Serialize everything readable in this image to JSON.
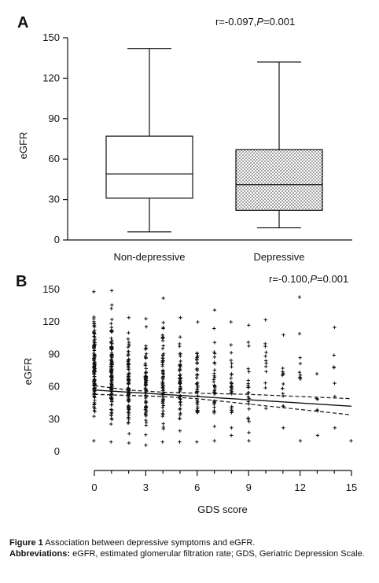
{
  "chart_data": [
    {
      "panel_label": "A",
      "type": "box",
      "annotation": {
        "prefix": "r=-0.097,",
        "p_symbol": "P",
        "p_value": "=0.001"
      },
      "ylabel": "eGFR",
      "ylim": [
        0,
        150
      ],
      "yticks": [
        "0",
        "30",
        "60",
        "90",
        "120",
        "150"
      ],
      "categories": [
        "Non-depressive",
        "Depressive"
      ],
      "boxes": [
        {
          "category": "Non-depressive",
          "min": 6,
          "q1": 31,
          "median": 49,
          "q3": 77,
          "max": 142,
          "fill": "plain"
        },
        {
          "category": "Depressive",
          "min": 9,
          "q1": 22,
          "median": 41,
          "q3": 67,
          "max": 132,
          "fill": "dotted"
        }
      ]
    },
    {
      "panel_label": "B",
      "type": "scatter",
      "annotation": {
        "prefix": "r=-0.100,",
        "p_symbol": "P",
        "p_value": "=0.001"
      },
      "xlabel": "GDS score",
      "ylabel": "eGFR",
      "xlim": [
        0,
        15
      ],
      "ylim": [
        0,
        150
      ],
      "xticks": [
        "0",
        "3",
        "6",
        "9",
        "12",
        "15"
      ],
      "yticks": [
        "0",
        "30",
        "60",
        "90",
        "120",
        "150"
      ],
      "marker": "+",
      "point_columns": [
        {
          "x": 0,
          "min": 10,
          "max": 148,
          "count": 130
        },
        {
          "x": 1,
          "min": 9,
          "max": 149,
          "count": 130
        },
        {
          "x": 2,
          "min": 8,
          "max": 124,
          "count": 95
        },
        {
          "x": 3,
          "min": 6,
          "max": 123,
          "count": 80
        },
        {
          "x": 4,
          "min": 9,
          "max": 142,
          "count": 70
        },
        {
          "x": 5,
          "min": 9,
          "max": 124,
          "count": 60
        },
        {
          "x": 6,
          "min": 9,
          "max": 120,
          "count": 45
        },
        {
          "x": 7,
          "min": 10,
          "max": 131,
          "count": 35
        },
        {
          "x": 8,
          "min": 15,
          "max": 120,
          "count": 28
        },
        {
          "x": 9,
          "min": 10,
          "max": 117,
          "count": 22
        },
        {
          "x": 10,
          "min": 40,
          "max": 122,
          "count": 12
        },
        {
          "x": 11,
          "min": 22,
          "max": 108,
          "count": 14
        },
        {
          "x": 12,
          "min": 10,
          "max": 143,
          "count": 10
        },
        {
          "x": 13,
          "min": 15,
          "max": 72,
          "count": 6
        },
        {
          "x": 14,
          "min": 22,
          "max": 115,
          "count": 7
        },
        {
          "x": 15,
          "min": 10,
          "max": 10,
          "count": 1
        }
      ],
      "regression_line": {
        "x": [
          0,
          15
        ],
        "y": [
          57,
          42
        ]
      },
      "ci_upper": {
        "x": [
          0,
          2,
          4,
          6,
          9,
          12,
          15
        ],
        "y": [
          61,
          57,
          55,
          54,
          53,
          51,
          49
        ]
      },
      "ci_lower": {
        "x": [
          0,
          2,
          4,
          6,
          9,
          12,
          15
        ],
        "y": [
          53,
          52,
          51,
          49,
          44,
          39,
          34
        ]
      }
    }
  ],
  "caption": {
    "figure_label": "Figure 1",
    "figure_text": " Association between depressive symptoms and eGFR.",
    "abbrev_label": "Abbreviations:",
    "abbrev_text": " eGFR, estimated glomerular filtration rate; GDS, Geriatric Depression Scale."
  }
}
